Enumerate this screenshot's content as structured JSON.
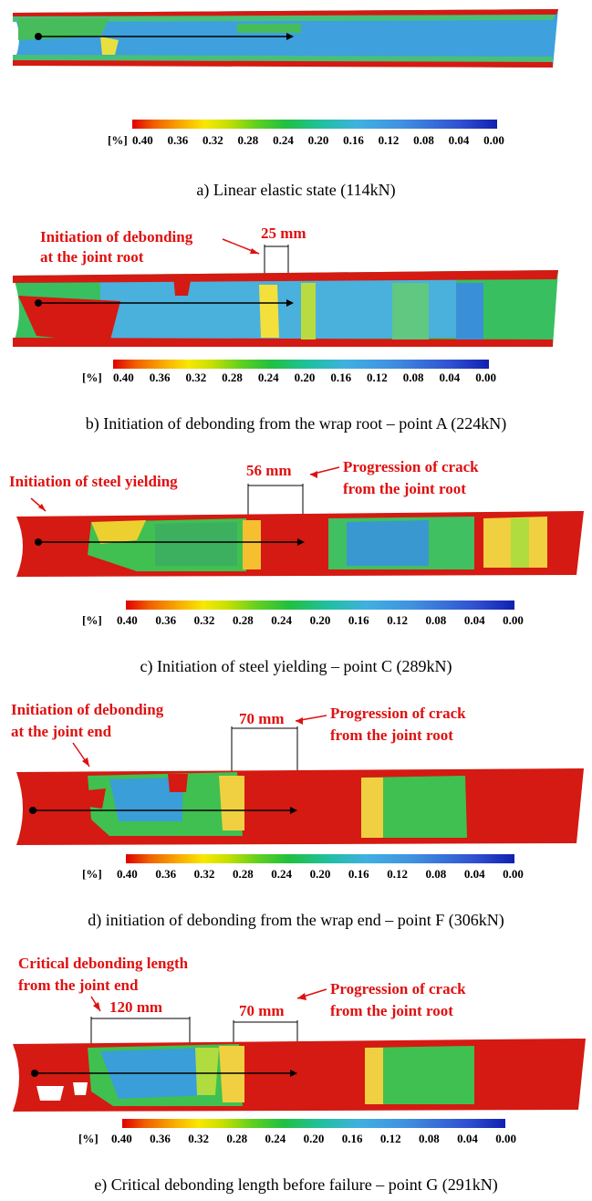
{
  "colorbar": {
    "unit": "[%]",
    "ticks": [
      "0.40",
      "0.36",
      "0.32",
      "0.28",
      "0.24",
      "0.20",
      "0.16",
      "0.12",
      "0.08",
      "0.04",
      "0.00"
    ]
  },
  "panels": [
    {
      "caption": "a) Linear elastic state (114kN)",
      "annotations": []
    },
    {
      "caption": "b) Initiation of debonding from the wrap root – point A (224kN)",
      "annotations": [
        "Initiation of debonding",
        "at the joint root",
        "25 mm"
      ]
    },
    {
      "caption": "c) Initiation of steel yielding – point C (289kN)",
      "annotations": [
        "Initiation of steel yielding",
        "56 mm",
        "Progression of crack",
        "from the joint root"
      ]
    },
    {
      "caption": "d) initiation of debonding from the wrap end – point F (306kN)",
      "annotations": [
        "Initiation of debonding",
        "at the joint end",
        "70 mm",
        "Progression of crack",
        "from the joint root"
      ]
    },
    {
      "caption": "e) Critical debonding length before failure – point G (291kN)",
      "annotations": [
        "Critical debonding length",
        "from the joint end",
        "120 mm",
        "70 mm",
        "Progression of crack",
        "from the joint root"
      ]
    }
  ],
  "colors": {
    "red": "#e01010",
    "green": "#40c040",
    "blue": "#4aa0e0",
    "yellow": "#f0e040"
  }
}
